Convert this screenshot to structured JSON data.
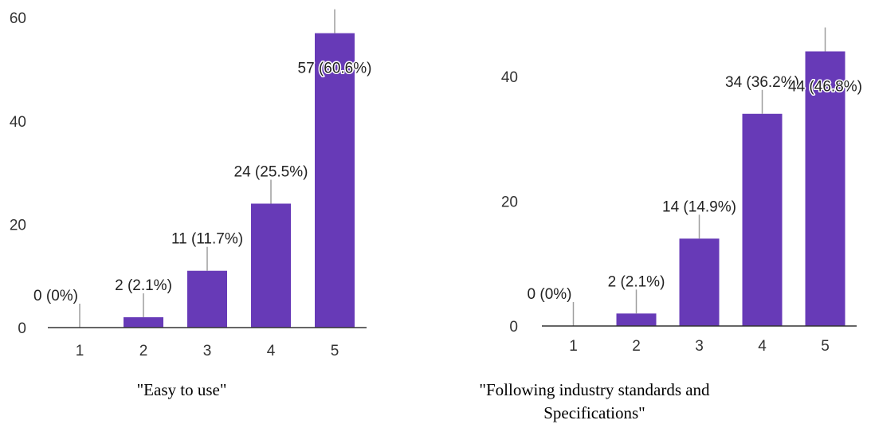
{
  "colors": {
    "bar": "#673ab7",
    "axis": "#333333",
    "leader": "#9e9e9e",
    "text": "#222222"
  },
  "chart_data": [
    {
      "type": "bar",
      "categories": [
        "1",
        "2",
        "3",
        "4",
        "5"
      ],
      "values": [
        0,
        2,
        11,
        24,
        57
      ],
      "data_labels": [
        "0 (0%)",
        "2 (2.1%)",
        "11 (11.7%)",
        "24 (25.5%)",
        "57 (60.6%)"
      ],
      "y_ticks": [
        "0",
        "20",
        "40",
        "60"
      ],
      "ylim": [
        0,
        60
      ],
      "caption": "\"Easy to use\"",
      "grid": false,
      "legend": "none"
    },
    {
      "type": "bar",
      "categories": [
        "1",
        "2",
        "3",
        "4",
        "5"
      ],
      "values": [
        0,
        2,
        14,
        34,
        44
      ],
      "data_labels": [
        "0 (0%)",
        "2 (2.1%)",
        "14 (14.9%)",
        "34 (36.2%)",
        "44 (46.8%)"
      ],
      "y_ticks": [
        "0",
        "20",
        "40"
      ],
      "ylim": [
        0,
        47
      ],
      "caption_lines": [
        "\"Following industry standards and",
        "Specifications\""
      ],
      "grid": false,
      "legend": "none"
    }
  ]
}
